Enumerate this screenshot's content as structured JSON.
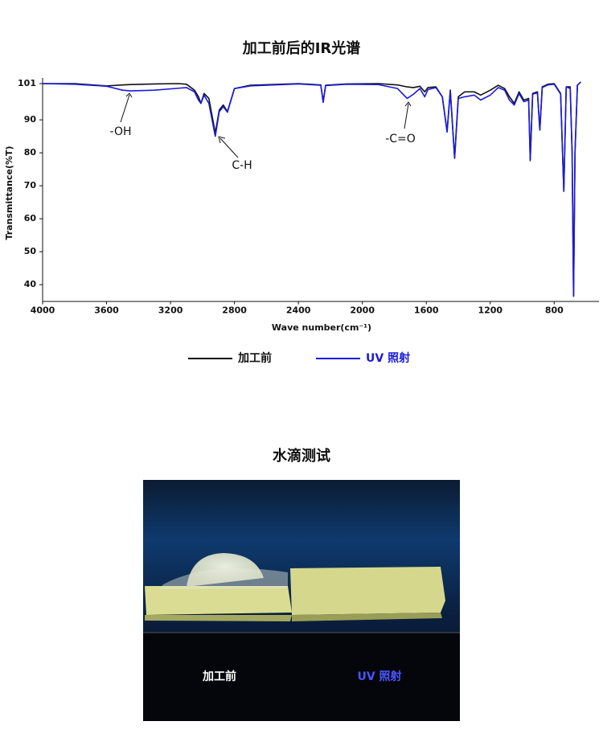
{
  "chart_data": {
    "type": "line",
    "title": "加工前后的IR光谱",
    "x_label": "Wave number(cm⁻¹)",
    "y_label": "Transmittance(%T)",
    "annotations": [
      "-OH",
      "C-H",
      "-C=O"
    ],
    "xlim": [
      4000,
      520
    ],
    "xticks": [
      4000,
      3600,
      3200,
      2800,
      2400,
      2000,
      1600,
      1200,
      800
    ],
    "ylim": [
      35,
      102.5
    ],
    "yticks": [
      40,
      50,
      60,
      70,
      80,
      90,
      101
    ],
    "legend": "bottom",
    "x": [
      4000,
      3800,
      3600,
      3500,
      3450,
      3300,
      3150,
      3100,
      3050,
      3025,
      3010,
      2990,
      2960,
      2920,
      2895,
      2870,
      2844,
      2800,
      2700,
      2400,
      2260,
      2245,
      2230,
      2100,
      1900,
      1780,
      1720,
      1680,
      1640,
      1610,
      1590,
      1540,
      1500,
      1470,
      1450,
      1423,
      1400,
      1360,
      1300,
      1260,
      1200,
      1150,
      1110,
      1080,
      1050,
      1020,
      990,
      960,
      950,
      935,
      905,
      890,
      875,
      840,
      800,
      760,
      740,
      725,
      700,
      688,
      679,
      670,
      655,
      634
    ],
    "series": [
      {
        "name": "加工前",
        "color": "#111111",
        "values": [
          101,
          101,
          100.3,
          100.6,
          100.7,
          100.9,
          101,
          100.8,
          99,
          97,
          95,
          98,
          96.5,
          86,
          93,
          94.5,
          92.5,
          99.5,
          100.5,
          101,
          100.6,
          95.5,
          100.5,
          100.9,
          101,
          100.6,
          100,
          99.8,
          100.2,
          98.5,
          99.8,
          100,
          97,
          86.5,
          99,
          78.5,
          97,
          98.5,
          98.5,
          97.5,
          99,
          100.5,
          99.5,
          97,
          95,
          98.5,
          96,
          96.5,
          78,
          98,
          98.5,
          87,
          100,
          100.8,
          101,
          98,
          68.5,
          100,
          100,
          80,
          36.5,
          80,
          100.5,
          101.5
        ]
      },
      {
        "name": "UV 照射",
        "color": "#1a1adf",
        "values": [
          101,
          100.8,
          100.2,
          99,
          98.8,
          99,
          99.6,
          99.8,
          98.5,
          96,
          95,
          97.5,
          95,
          85,
          92.5,
          94,
          92.3,
          99.5,
          100.3,
          100.9,
          100.5,
          95.3,
          100.4,
          100.8,
          100.7,
          99.5,
          96.5,
          97.8,
          99.5,
          97,
          99.2,
          99.8,
          97,
          86.3,
          98.7,
          78.3,
          96.5,
          97,
          97.5,
          96,
          97.5,
          99.8,
          99,
          96,
          94.5,
          98,
          95.5,
          96,
          77.6,
          97.8,
          98.2,
          86.9,
          99.8,
          100.6,
          100.8,
          97.8,
          68.3,
          100,
          99.5,
          80,
          36.5,
          80,
          100.5,
          101.5
        ]
      }
    ]
  },
  "photo": {
    "title": "水滴测试",
    "labels": [
      "加工前",
      "UV 照射"
    ]
  }
}
